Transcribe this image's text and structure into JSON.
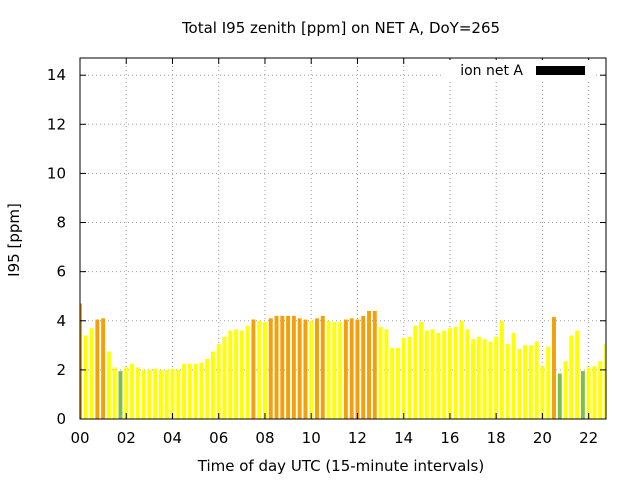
{
  "chart_data": {
    "type": "bar",
    "title": "Total I95 zenith [ppm] on NET A, DoY=265",
    "xlabel": "Time of day UTC (15-minute intervals)",
    "ylabel": "I95 [ppm]",
    "xlim": [
      0,
      22.75
    ],
    "ylim": [
      0,
      14.7
    ],
    "x_ticks": [
      0,
      2,
      4,
      6,
      8,
      10,
      12,
      14,
      16,
      18,
      20,
      22
    ],
    "x_tick_labels": [
      "00",
      "02",
      "04",
      "06",
      "08",
      "10",
      "12",
      "14",
      "16",
      "18",
      "20",
      "22"
    ],
    "y_ticks": [
      0,
      2,
      4,
      6,
      8,
      10,
      12,
      14
    ],
    "y_tick_labels": [
      "0",
      "2",
      "4",
      "6",
      "8",
      "10",
      "12",
      "14"
    ],
    "grid": true,
    "legend": {
      "label": "ion net A",
      "color": "#000000",
      "position": "top-right"
    },
    "colors": {
      "yellow": "#ffff00",
      "orange": "#f5a00a",
      "green": "#7cc04a"
    },
    "bar_width_hours": 0.17,
    "x": [
      0,
      0.25,
      0.5,
      0.75,
      1.0,
      1.25,
      1.5,
      1.75,
      2.0,
      2.25,
      2.5,
      2.75,
      3.0,
      3.25,
      3.5,
      3.75,
      4.0,
      4.25,
      4.5,
      4.75,
      5.0,
      5.25,
      5.5,
      5.75,
      6.0,
      6.25,
      6.5,
      6.75,
      7.0,
      7.25,
      7.5,
      7.75,
      8.0,
      8.25,
      8.5,
      8.75,
      9.0,
      9.25,
      9.5,
      9.75,
      10.0,
      10.25,
      10.5,
      10.75,
      11.0,
      11.25,
      11.5,
      11.75,
      12.0,
      12.25,
      12.5,
      12.75,
      13.0,
      13.25,
      13.5,
      13.75,
      14.0,
      14.25,
      14.5,
      14.75,
      15.0,
      15.25,
      15.5,
      15.75,
      16.0,
      16.25,
      16.5,
      16.75,
      17.0,
      17.25,
      17.5,
      17.75,
      18.0,
      18.25,
      18.5,
      18.75,
      19.0,
      19.25,
      19.5,
      19.75,
      20.0,
      20.25,
      20.5,
      20.75,
      21.0,
      21.25,
      21.5,
      21.75,
      22.0,
      22.25,
      22.5,
      22.75
    ],
    "values": [
      4.7,
      3.4,
      3.7,
      4.05,
      4.1,
      2.75,
      2.1,
      1.95,
      2.1,
      2.25,
      2.1,
      2.0,
      2.0,
      2.05,
      2.0,
      2.0,
      2.05,
      2.0,
      2.25,
      2.25,
      2.25,
      2.3,
      2.45,
      2.75,
      3.05,
      3.35,
      3.6,
      3.65,
      3.6,
      3.8,
      4.05,
      4.0,
      3.95,
      4.1,
      4.2,
      4.2,
      4.2,
      4.2,
      4.1,
      4.05,
      4.0,
      4.1,
      4.2,
      4.0,
      3.95,
      3.95,
      4.05,
      4.1,
      4.05,
      4.2,
      4.4,
      4.4,
      3.75,
      3.65,
      2.9,
      2.9,
      3.3,
      3.35,
      3.8,
      3.95,
      3.6,
      3.65,
      3.5,
      3.6,
      3.7,
      3.75,
      4.0,
      3.65,
      3.25,
      3.35,
      3.25,
      3.15,
      3.35,
      4.0,
      3.05,
      3.5,
      2.85,
      3.0,
      3.0,
      3.15,
      2.15,
      2.95,
      4.15,
      1.85,
      2.35,
      3.4,
      3.6,
      1.95,
      2.1,
      2.15,
      2.35,
      3.05
    ],
    "bar_colors": [
      "orange",
      "yellow",
      "yellow",
      "orange",
      "orange",
      "yellow",
      "yellow",
      "green",
      "yellow",
      "yellow",
      "yellow",
      "yellow",
      "yellow",
      "yellow",
      "yellow",
      "yellow",
      "yellow",
      "yellow",
      "yellow",
      "yellow",
      "yellow",
      "yellow",
      "yellow",
      "yellow",
      "yellow",
      "yellow",
      "yellow",
      "yellow",
      "yellow",
      "yellow",
      "orange",
      "yellow",
      "yellow",
      "orange",
      "orange",
      "orange",
      "orange",
      "orange",
      "orange",
      "orange",
      "yellow",
      "orange",
      "orange",
      "yellow",
      "yellow",
      "yellow",
      "orange",
      "orange",
      "orange",
      "orange",
      "orange",
      "orange",
      "yellow",
      "yellow",
      "yellow",
      "yellow",
      "yellow",
      "yellow",
      "yellow",
      "yellow",
      "yellow",
      "yellow",
      "yellow",
      "yellow",
      "yellow",
      "yellow",
      "yellow",
      "yellow",
      "yellow",
      "yellow",
      "yellow",
      "yellow",
      "yellow",
      "yellow",
      "yellow",
      "yellow",
      "yellow",
      "yellow",
      "yellow",
      "yellow",
      "yellow",
      "yellow",
      "orange",
      "green",
      "yellow",
      "yellow",
      "yellow",
      "green",
      "yellow",
      "yellow",
      "yellow",
      "yellow"
    ]
  }
}
